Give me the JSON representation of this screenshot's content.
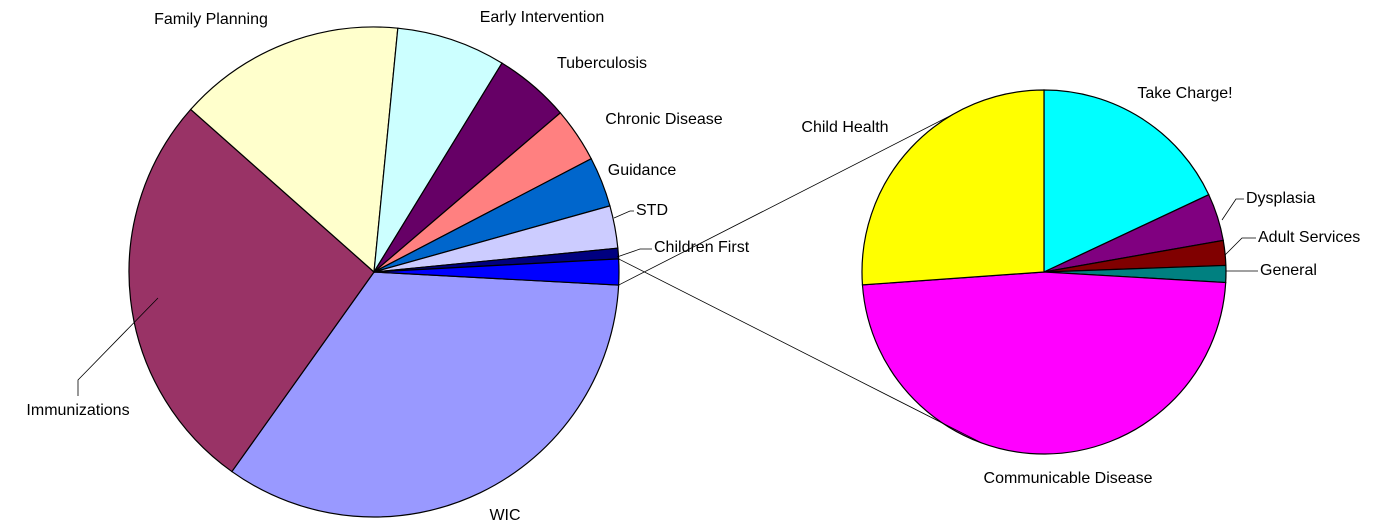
{
  "chart_data": [
    {
      "type": "pie",
      "categories": [
        "WIC",
        "Immunizations",
        "Family Planning",
        "Early Intervention",
        "Tuberculosis",
        "Chronic Disease",
        "Guidance",
        "STD",
        "Children First",
        null
      ],
      "values": [
        34,
        26.7,
        15,
        7.2,
        5,
        3.6,
        3.3,
        2.8,
        0.7,
        1.7
      ],
      "colors": [
        "#9999ff",
        "#993366",
        "#ffffcc",
        "#ccffff",
        "#660066",
        "#ff8080",
        "#0066cc",
        "#ccccff",
        "#000080",
        "#0000ff"
      ]
    },
    {
      "type": "pie",
      "categories": [
        "Take Charge!",
        "Dysplasia",
        "Adult Services",
        "General",
        "Communicable Disease",
        "Child Health"
      ],
      "values": [
        18,
        4.2,
        2.2,
        1.5,
        47.9,
        26.1
      ],
      "colors": [
        "#00ffff",
        "#800080",
        "#800000",
        "#008080",
        "#ff00ff",
        "#ffff00"
      ]
    }
  ]
}
